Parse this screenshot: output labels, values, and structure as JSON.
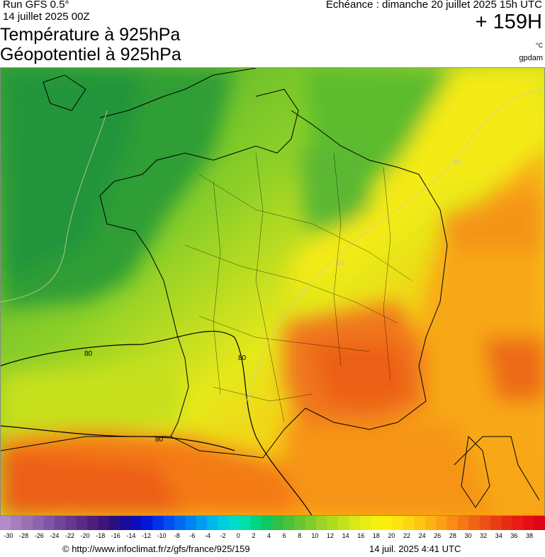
{
  "header": {
    "run_title": "Run GFS 0.5°",
    "run_date": "14 juillet 2025 00Z",
    "title_line1": "Température à 925hPa",
    "title_line2": "Géopotentiel à 925hPa",
    "echeance": "Echéance : dimanche 20 juillet 2025 15h UTC",
    "horizon": "+ 159H",
    "unit": "°C",
    "source_tag": "gpdam"
  },
  "map": {
    "contour_labels": [
      "80",
      "80",
      "80",
      "80",
      "80"
    ]
  },
  "colorbar": {
    "tick_labels": [
      "-30",
      "-28",
      "-26",
      "-24",
      "-22",
      "-20",
      "-18",
      "-16",
      "-14",
      "-12",
      "-10",
      "-8",
      "-6",
      "-4",
      "-2",
      "0",
      "2",
      "4",
      "6",
      "8",
      "10",
      "12",
      "14",
      "16",
      "18",
      "20",
      "22",
      "24",
      "26",
      "28",
      "30",
      "32",
      "34",
      "36",
      "38"
    ],
    "colors": [
      "#b48ac8",
      "#a57ebd",
      "#9a6fb4",
      "#8e62ad",
      "#8054a6",
      "#73469c",
      "#663990",
      "#5a2c86",
      "#4d1f7c",
      "#40147a",
      "#2a0f80",
      "#1a0c9a",
      "#0b0ebd",
      "#0018d8",
      "#0032e8",
      "#004ef0",
      "#0068f2",
      "#0082f2",
      "#009cf0",
      "#00b6ea",
      "#00cce0",
      "#00dcc8",
      "#00e0a8",
      "#00d682",
      "#10c860",
      "#30c048",
      "#4cc23a",
      "#66c632",
      "#80cc2c",
      "#9ad426",
      "#b0dc20",
      "#c4e21c",
      "#d8e818",
      "#e8ee14",
      "#f4f010",
      "#fcee0c",
      "#fce410",
      "#fcd614",
      "#fcc614",
      "#fcb414",
      "#fca014",
      "#f88c14",
      "#f47814",
      "#f06414",
      "#ec5014",
      "#e83e14",
      "#e82c14",
      "#e81c14",
      "#e80c14",
      "#e00418"
    ],
    "colors_tail": []
  },
  "footer": {
    "copyright": "© http://www.infoclimat.fr/z/gfs/france/925/159",
    "generated": "14 juil. 2025  4:41 UTC"
  }
}
